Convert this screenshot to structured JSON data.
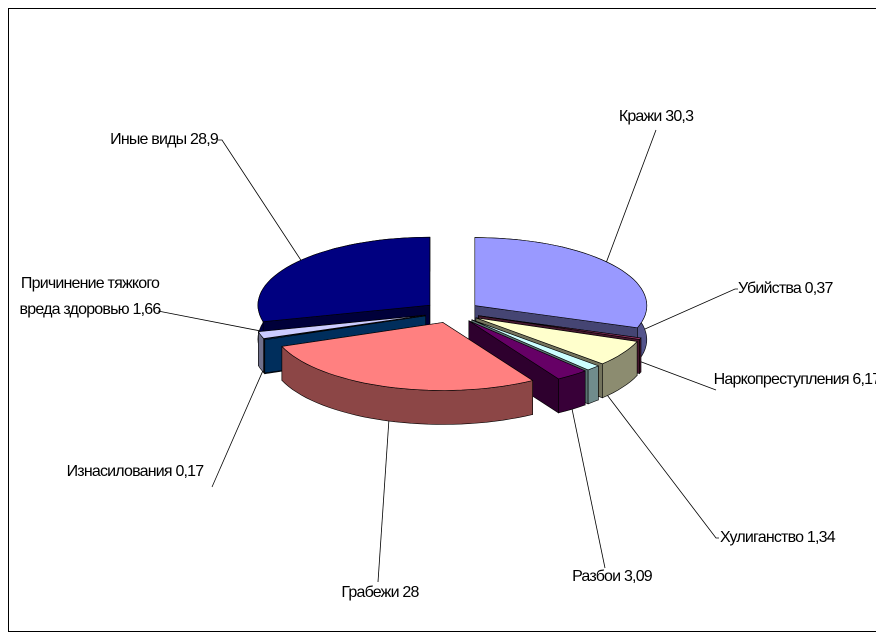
{
  "chart_data": {
    "type": "pie3d",
    "categories": [
      "Кражи",
      "Убийства ",
      "Наркопреступления",
      "Хулиганство",
      "Разбои",
      "Грабежи",
      "Изнасилования",
      "Причинение тяжкого вреда здоровью",
      "Иные виды"
    ],
    "values": [
      30.3,
      0.37,
      6.17,
      1.34,
      3.09,
      28,
      0.17,
      1.66,
      28.9
    ],
    "value_labels": [
      "30,3",
      "0,37",
      "6,17",
      "1,34",
      "3,09",
      "28",
      "0,17",
      "1,66",
      "28,9"
    ],
    "colors": [
      "#9999ff",
      "#993366",
      "#ffffcc",
      "#ccffff",
      "#660066",
      "#ff8080",
      "#0066cc",
      "#ccccff",
      "#000080"
    ]
  }
}
